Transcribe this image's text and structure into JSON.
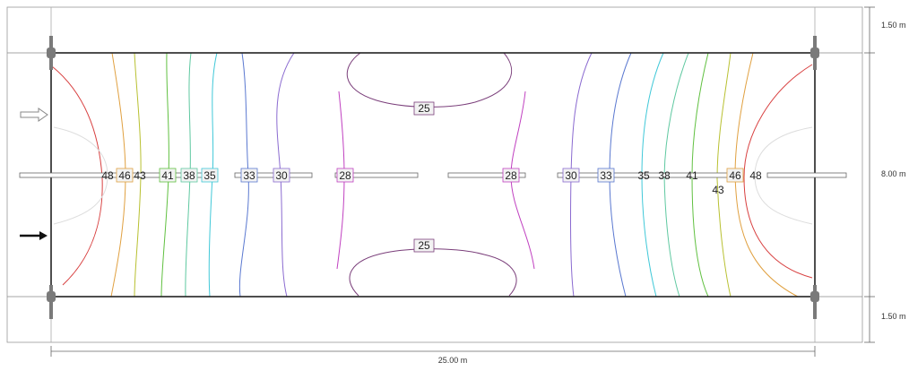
{
  "dimensions": {
    "length": "25.00 m",
    "top_strip": "1.50 m",
    "field": "8.00 m",
    "bottom_strip": "1.50 m"
  },
  "contours": [
    {
      "value": "25",
      "color": "#7a3e7a"
    },
    {
      "value": "28",
      "color": "#c040c0"
    },
    {
      "value": "30",
      "color": "#8a6ad0"
    },
    {
      "value": "33",
      "color": "#5a78d0"
    },
    {
      "value": "35",
      "color": "#40c8d8"
    },
    {
      "value": "38",
      "color": "#5ec8a0"
    },
    {
      "value": "41",
      "color": "#60c040"
    },
    {
      "value": "43",
      "color": "#b8c030"
    },
    {
      "value": "46",
      "color": "#e0a040"
    },
    {
      "value": "48",
      "color": "#d84040"
    }
  ],
  "labels": {
    "row": [
      "48",
      "46",
      "43",
      "41",
      "38",
      "35",
      "33",
      "30",
      "28",
      "28",
      "30",
      "33",
      "35",
      "38",
      "41",
      "46",
      "48"
    ],
    "extra_43": "43",
    "top_25": "25",
    "bottom_25": "25"
  },
  "colors": {
    "frame": "#222222",
    "outer": "#888888",
    "fixture": "#7a7a7a",
    "label_fill": "#f2f2f2"
  },
  "arrows": {
    "outline": "outline-arrow-icon",
    "solid": "solid-arrow-icon"
  }
}
